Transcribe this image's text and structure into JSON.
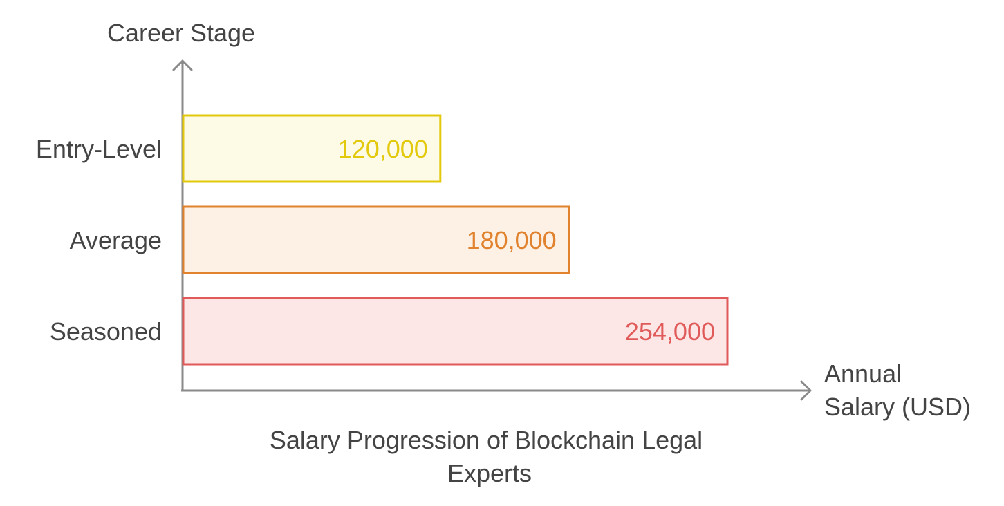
{
  "chart_data": {
    "type": "bar",
    "orientation": "horizontal",
    "title": "Salary Progression of Blockchain Legal Experts",
    "title_lines": [
      "Salary Progression of Blockchain Legal",
      "Experts"
    ],
    "ylabel": "Career Stage",
    "xlabel": "Annual Salary (USD)",
    "xlabel_lines": [
      "Annual",
      "Salary (USD)"
    ],
    "categories": [
      "Entry-Level",
      "Average",
      "Seasoned"
    ],
    "values": [
      120000,
      180000,
      254000
    ],
    "value_labels": [
      "120,000",
      "180,000",
      "254,000"
    ],
    "xlim": [
      0,
      254000
    ],
    "grid": false,
    "legend": "none",
    "colors": {
      "stroke": [
        "#e3c90c",
        "#e0822e",
        "#e05a5a"
      ],
      "fill": [
        "#fdfae6",
        "#fdf1e5",
        "#fde6e6"
      ],
      "label": [
        "#e3c90c",
        "#e0822e",
        "#e05a5a"
      ],
      "axis": "#8a8a8a",
      "text": "#444444"
    }
  }
}
